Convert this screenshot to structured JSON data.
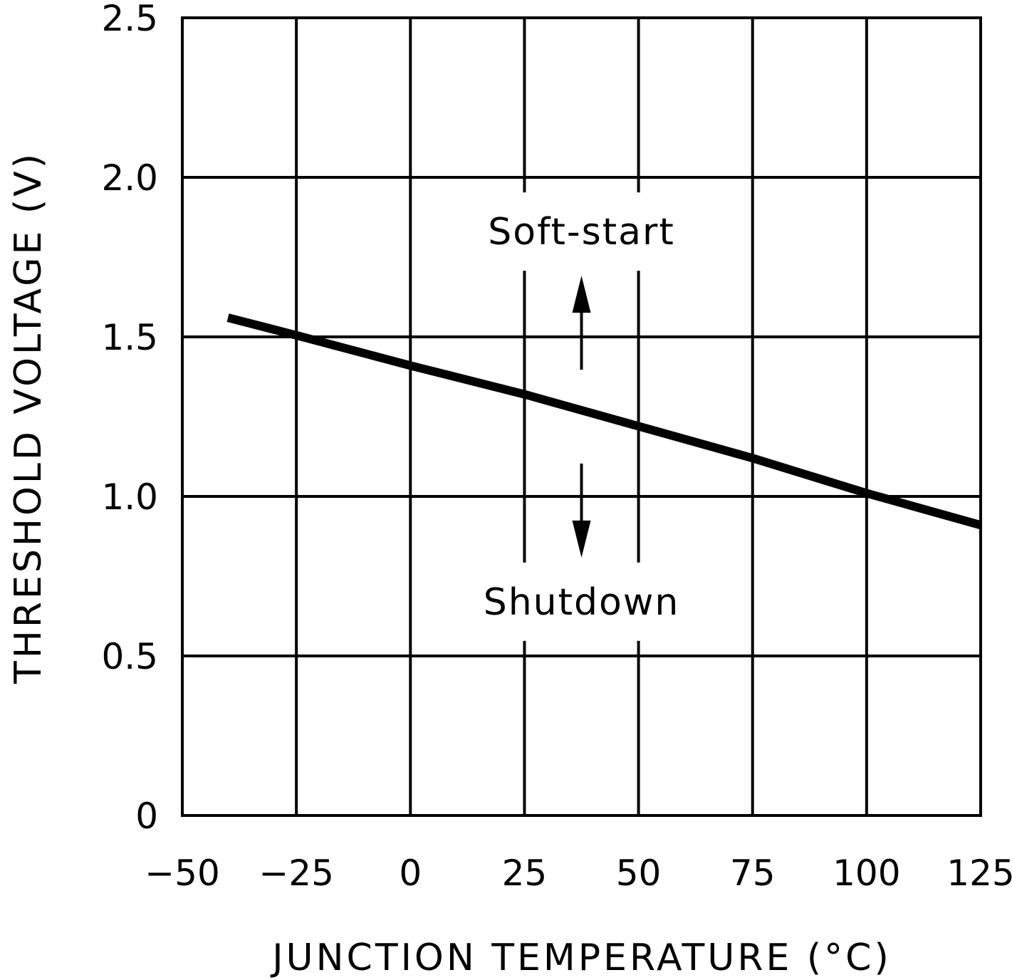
{
  "chart_data": {
    "type": "line",
    "title": "",
    "xlabel": "JUNCTION TEMPERATURE (°C)",
    "ylabel": "THRESHOLD VOLTAGE (V)",
    "xlim": [
      -50,
      125
    ],
    "ylim": [
      0,
      2.5
    ],
    "x_ticks": [
      -50,
      -25,
      0,
      25,
      50,
      75,
      100,
      125
    ],
    "x_tick_labels": [
      "−50",
      "−25",
      "0",
      "25",
      "50",
      "75",
      "100",
      "125"
    ],
    "y_ticks": [
      0,
      0.5,
      1.0,
      1.5,
      2.0,
      2.5
    ],
    "y_tick_labels": [
      "0",
      "0.5",
      "1.0",
      "1.5",
      "2.0",
      "2.5"
    ],
    "grid": true,
    "series": [
      {
        "x": [
          -40,
          -25,
          0,
          25,
          50,
          75,
          100,
          125
        ],
        "y": [
          1.56,
          1.505,
          1.41,
          1.32,
          1.22,
          1.12,
          1.01,
          0.91
        ]
      }
    ],
    "annotations": [
      {
        "text": "Soft-start",
        "x": 37.5,
        "y": 1.83,
        "arrow": "up"
      },
      {
        "text": "Shutdown",
        "x": 37.5,
        "y": 0.67,
        "arrow": "down"
      }
    ],
    "colors": {
      "line": "#000000",
      "grid": "#000000",
      "background": "#ffffff"
    }
  }
}
